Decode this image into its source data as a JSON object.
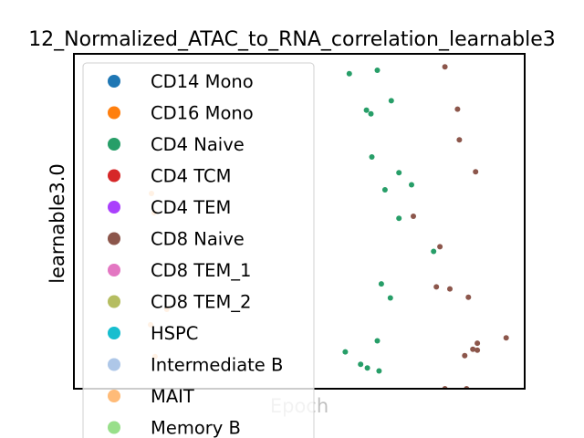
{
  "chart_data": {
    "type": "scatter",
    "title": "12_Normalized_ATAC_to_RNA_correlation_learnable3",
    "xlabel": "Epoch",
    "ylabel": "learnable3.0",
    "x_ticks_visible": false,
    "y_ticks_visible": false,
    "grid": false,
    "legend_location": "upper-left, overlapping the plot",
    "legend": [
      {
        "name": "CD14 Mono",
        "color": "#1f77b4"
      },
      {
        "name": "CD16 Mono",
        "color": "#ff7f0e"
      },
      {
        "name": "CD4 Naive",
        "color": "#279e68"
      },
      {
        "name": "CD4 TCM",
        "color": "#d62728"
      },
      {
        "name": "CD4 TEM",
        "color": "#aa40fc"
      },
      {
        "name": "CD8 Naive",
        "color": "#8c564b"
      },
      {
        "name": "CD8 TEM_1",
        "color": "#e377c2"
      },
      {
        "name": "CD8 TEM_2",
        "color": "#b5bd61"
      },
      {
        "name": "HSPC",
        "color": "#17becf"
      },
      {
        "name": "Intermediate B",
        "color": "#aec7e8"
      },
      {
        "name": "MAIT",
        "color": "#ffbb78"
      },
      {
        "name": "Memory B",
        "color": "#98df8a"
      }
    ],
    "xlim": [
      0,
      100
    ],
    "ylim": [
      0,
      100
    ],
    "series": [
      {
        "name": "CD4 Naive",
        "color": "#279e68",
        "points": [
          [
            61.1,
            94.1
          ],
          [
            67.3,
            95.1
          ],
          [
            70.4,
            86.0
          ],
          [
            64.9,
            83.2
          ],
          [
            65.9,
            82.1
          ],
          [
            66.1,
            69.2
          ],
          [
            72.1,
            64.5
          ],
          [
            74.9,
            60.9
          ],
          [
            69.0,
            59.4
          ],
          [
            72.1,
            50.9
          ],
          [
            79.8,
            41.0
          ],
          [
            68.2,
            31.3
          ],
          [
            70.2,
            27.1
          ],
          [
            67.3,
            14.3
          ],
          [
            60.2,
            11.0
          ],
          [
            63.6,
            7.3
          ],
          [
            65.1,
            6.2
          ],
          [
            67.7,
            5.3
          ]
        ]
      },
      {
        "name": "CD8 Naive",
        "color": "#8c564b",
        "points": [
          [
            82.3,
            96.1
          ],
          [
            85.1,
            83.5
          ],
          [
            85.5,
            74.3
          ],
          [
            89.1,
            64.8
          ],
          [
            75.3,
            51.5
          ],
          [
            81.2,
            42.4
          ],
          [
            80.4,
            30.4
          ],
          [
            83.4,
            29.8
          ],
          [
            87.5,
            27.3
          ],
          [
            95.9,
            15.2
          ],
          [
            89.5,
            13.6
          ],
          [
            88.5,
            11.8
          ],
          [
            89.5,
            11.5
          ],
          [
            86.7,
            9.9
          ],
          [
            82.3,
            0.0
          ],
          [
            87.1,
            0.0
          ]
        ]
      },
      {
        "name": "MAIT",
        "color": "#ffbb78",
        "points": [
          [
            17.2,
            58.3
          ],
          [
            17.8,
            52.5
          ],
          [
            20.6,
            23.7
          ],
          [
            17.0,
            19.1
          ],
          [
            18.0,
            9.6
          ]
        ]
      }
    ]
  }
}
